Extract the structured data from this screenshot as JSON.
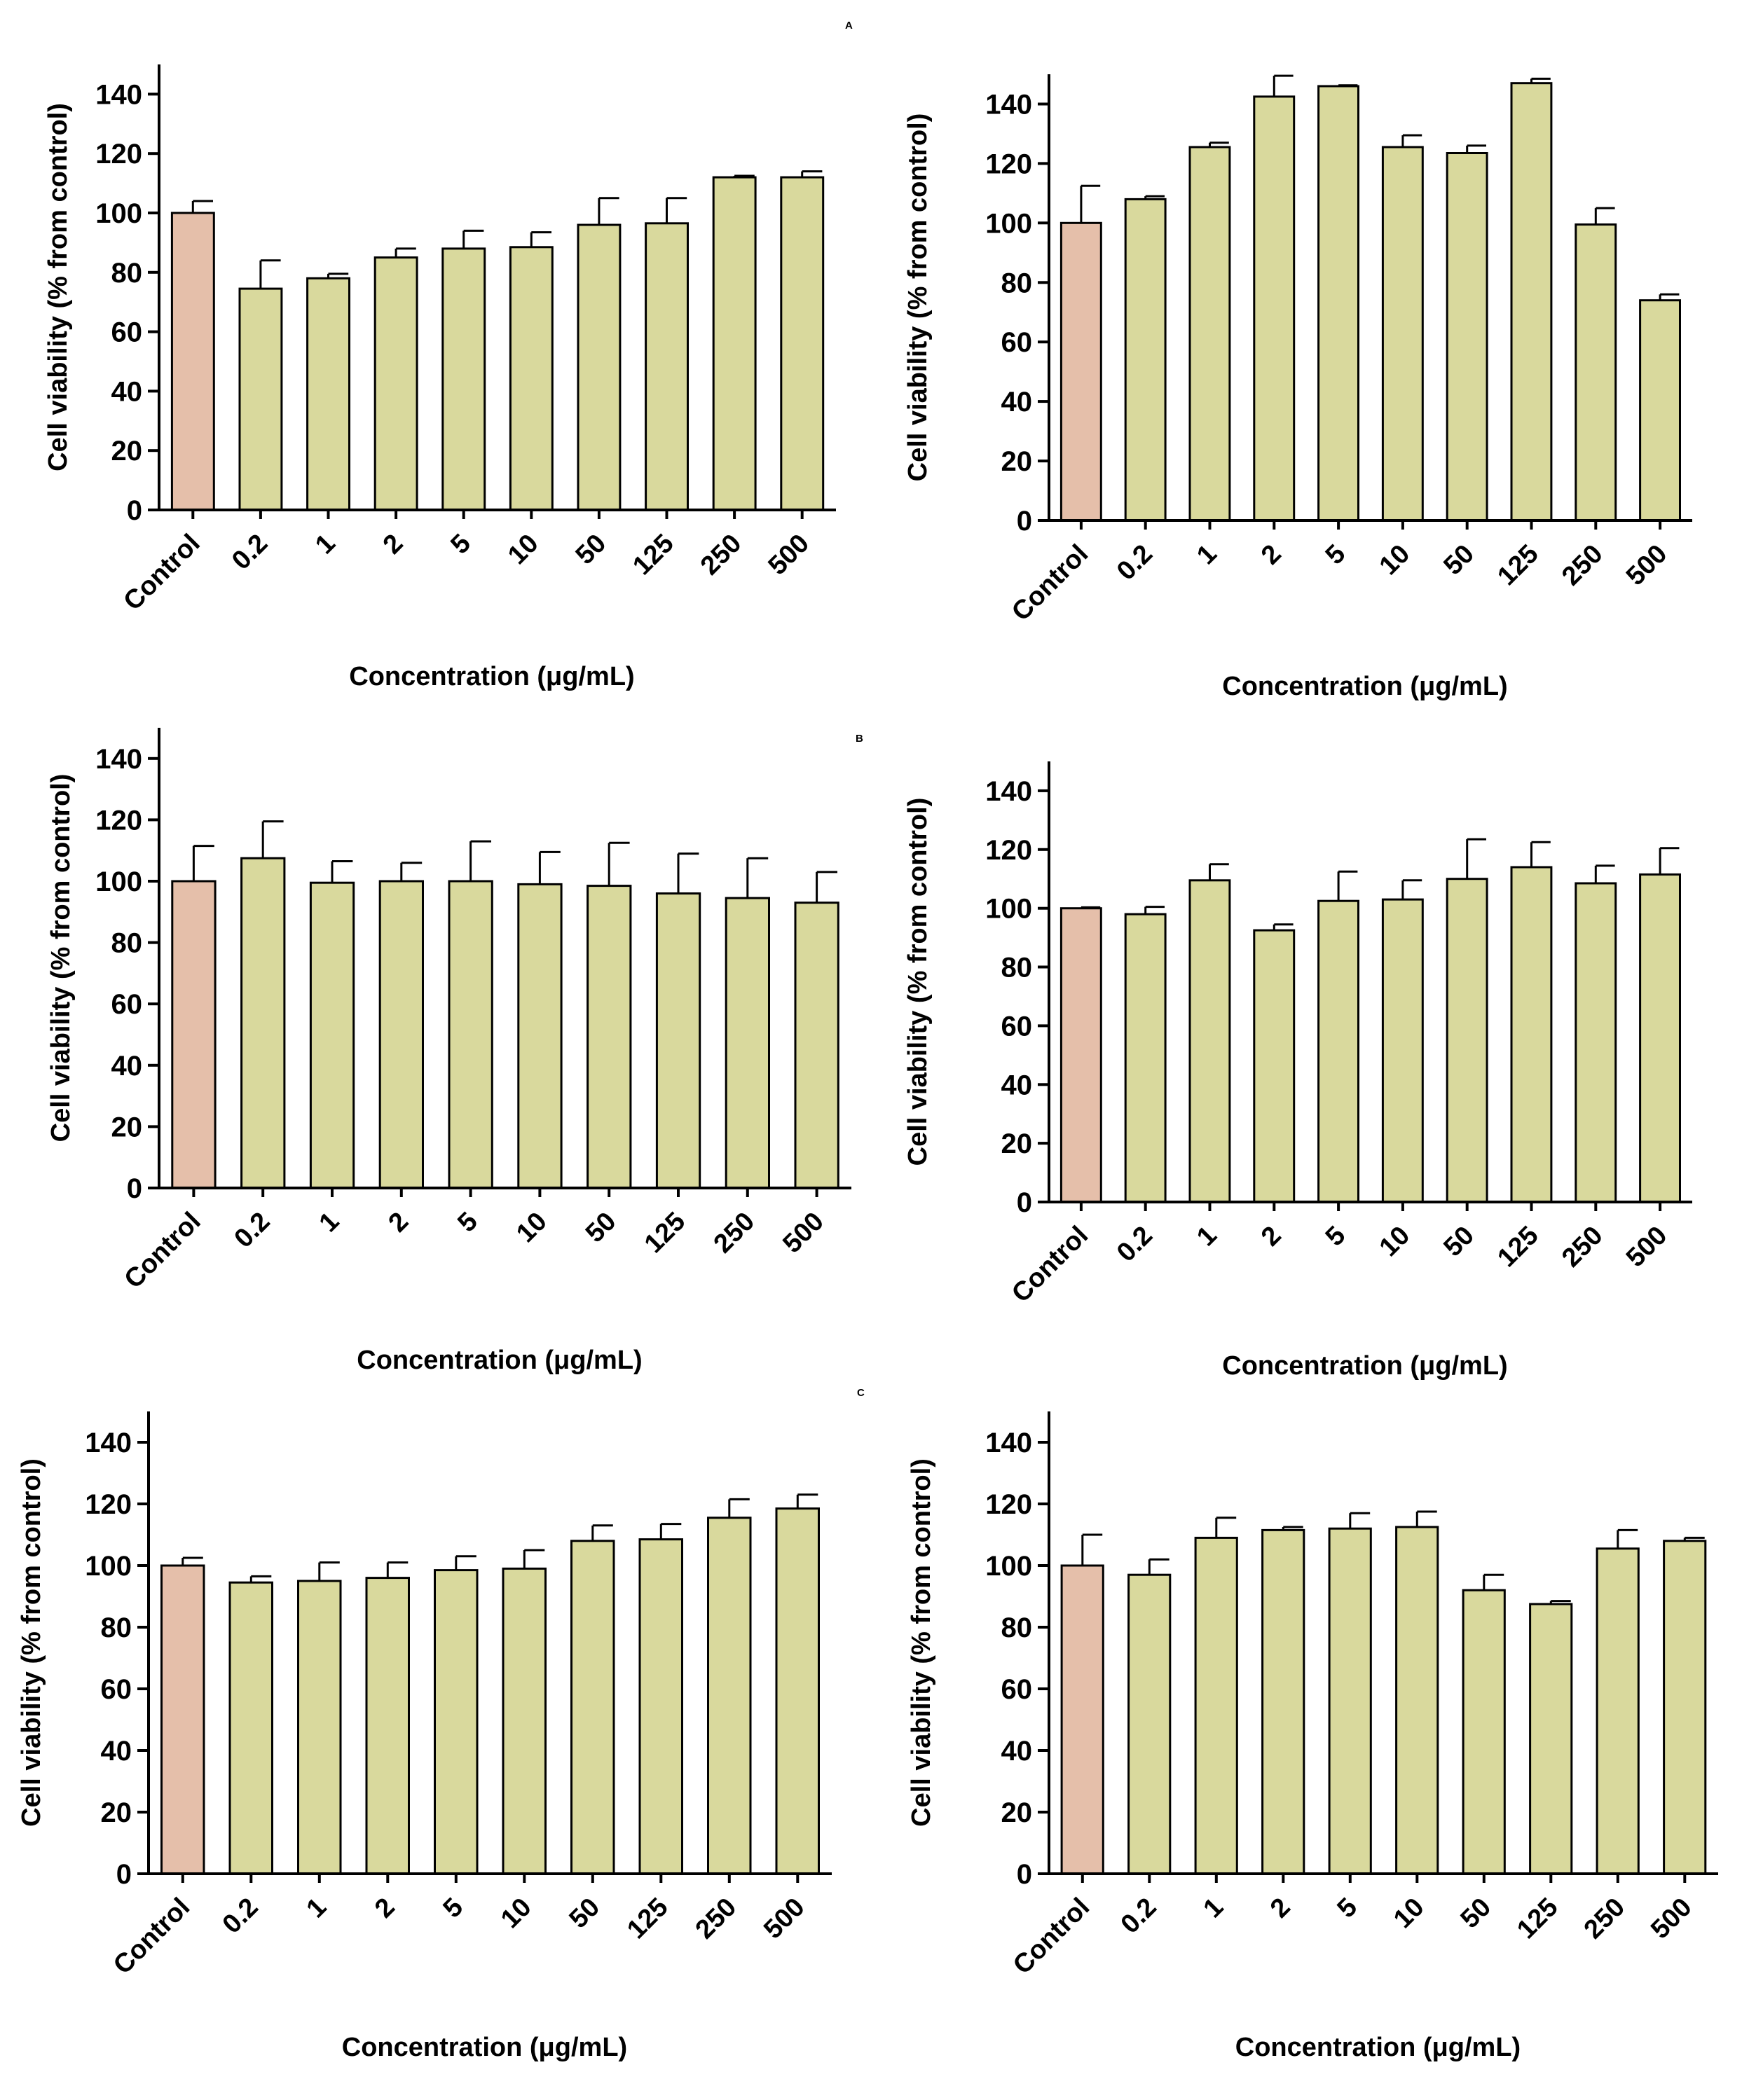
{
  "figure": {
    "panel_letters": [
      "A",
      "B",
      "C"
    ],
    "colors": {
      "control": "#E5BFAA",
      "treated": "#D9D99D",
      "stroke": "#000000"
    }
  },
  "chart_data": [
    {
      "type": "bar",
      "panel": "A",
      "position": "left",
      "title": "",
      "categories": [
        "Control",
        "0.2",
        "1",
        "2",
        "5",
        "10",
        "50",
        "125",
        "250",
        "500"
      ],
      "values": [
        100,
        74.5,
        78,
        85,
        88,
        88.5,
        96,
        96.5,
        112,
        112
      ],
      "error": [
        4,
        9.5,
        1.5,
        3,
        6,
        5,
        9,
        8.5,
        0.5,
        2
      ],
      "xlabel": "Concentration (μg/mL)",
      "ylabel": "Cell viability (% from control)",
      "ylim": [
        0,
        150
      ],
      "yticks": [
        0,
        20,
        40,
        60,
        80,
        100,
        120,
        140
      ]
    },
    {
      "type": "bar",
      "panel": "A",
      "position": "right",
      "title": "",
      "categories": [
        "Control",
        "0.2",
        "1",
        "2",
        "5",
        "10",
        "50",
        "125",
        "250",
        "500"
      ],
      "values": [
        100,
        108,
        125.5,
        142.5,
        146,
        125.5,
        123.5,
        147,
        99.5,
        74
      ],
      "error": [
        12.5,
        1,
        1.5,
        7,
        0.3,
        4,
        2.5,
        1.5,
        5.5,
        2
      ],
      "xlabel": "Concentration (μg/mL)",
      "ylabel": "Cell viability (% from control)",
      "ylim": [
        0,
        150
      ],
      "yticks": [
        0,
        20,
        40,
        60,
        80,
        100,
        120,
        140
      ]
    },
    {
      "type": "bar",
      "panel": "B",
      "position": "left",
      "title": "",
      "categories": [
        "Control",
        "0.2",
        "1",
        "2",
        "5",
        "10",
        "50",
        "125",
        "250",
        "500"
      ],
      "values": [
        100,
        107.5,
        99.5,
        100,
        100,
        99,
        98.5,
        96,
        94.5,
        93
      ],
      "error": [
        11.5,
        12,
        7,
        6,
        13,
        10.5,
        14,
        13,
        13,
        10
      ],
      "xlabel": "Concentration (μg/mL)",
      "ylabel": "Cell viability (% from control)",
      "ylim": [
        0,
        150
      ],
      "yticks": [
        0,
        20,
        40,
        60,
        80,
        100,
        120,
        140
      ]
    },
    {
      "type": "bar",
      "panel": "B",
      "position": "right",
      "title": "",
      "categories": [
        "Control",
        "0.2",
        "1",
        "2",
        "5",
        "10",
        "50",
        "125",
        "250",
        "500"
      ],
      "values": [
        100,
        98,
        109.5,
        92.5,
        102.5,
        103,
        110,
        114,
        108.5,
        111.5
      ],
      "error": [
        0.3,
        2.5,
        5.5,
        2,
        10,
        6.5,
        13.5,
        8.5,
        6,
        9
      ],
      "xlabel": "Concentration (μg/mL)",
      "ylabel": "Cell viability (% from control)",
      "ylim": [
        0,
        150
      ],
      "yticks": [
        0,
        20,
        40,
        60,
        80,
        100,
        120,
        140
      ]
    },
    {
      "type": "bar",
      "panel": "C",
      "position": "left",
      "title": "",
      "categories": [
        "Control",
        "0.2",
        "1",
        "2",
        "5",
        "10",
        "50",
        "125",
        "250",
        "500"
      ],
      "values": [
        100,
        94.5,
        95,
        96,
        98.5,
        99,
        108,
        108.5,
        115.5,
        118.5
      ],
      "error": [
        2.5,
        2,
        6,
        5,
        4.5,
        6,
        5,
        5,
        6,
        4.5
      ],
      "xlabel": "Concentration (μg/mL)",
      "ylabel": "Cell viability (% from control)",
      "ylim": [
        0,
        150
      ],
      "yticks": [
        0,
        20,
        40,
        60,
        80,
        100,
        120,
        140
      ]
    },
    {
      "type": "bar",
      "panel": "C",
      "position": "right",
      "title": "",
      "categories": [
        "Control",
        "0.2",
        "1",
        "2",
        "5",
        "10",
        "50",
        "125",
        "250",
        "500"
      ],
      "values": [
        100,
        97,
        109,
        111.5,
        112,
        112.5,
        92,
        87.5,
        105.5,
        108
      ],
      "error": [
        10,
        5,
        6.5,
        1,
        5,
        5,
        5,
        1,
        6,
        1
      ],
      "xlabel": "Concentration (μg/mL)",
      "ylabel": "Cell viability (% from control)",
      "ylim": [
        0,
        150
      ],
      "yticks": [
        0,
        20,
        40,
        60,
        80,
        100,
        120,
        140
      ]
    }
  ]
}
